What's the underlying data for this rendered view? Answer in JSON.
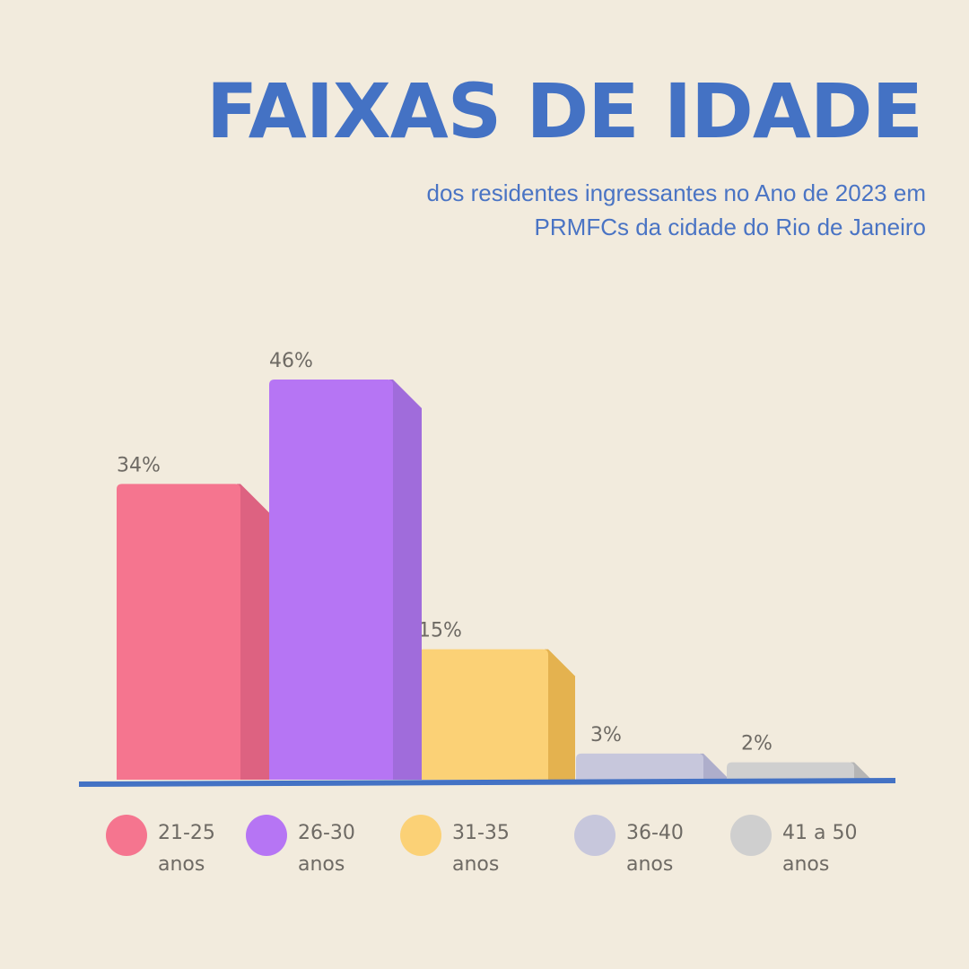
{
  "title": "FAIXAS DE IDADE",
  "subtitle_line1": "dos residentes ingressantes no Ano de 2023 em",
  "subtitle_line2": "PRMFCs da cidade do Rio de Janeiro",
  "chart_data": {
    "type": "bar",
    "categories": [
      "21-25 anos",
      "26-30 anos",
      "31-35 anos",
      "36-40 anos",
      "41 a 50 anos"
    ],
    "values": [
      34,
      46,
      15,
      3,
      2
    ],
    "labels": [
      "34%",
      "46%",
      "15%",
      "3%",
      "2%"
    ],
    "ylim": [
      0,
      46
    ],
    "colors": [
      "#f5758f",
      "#b675f4",
      "#fbd176",
      "#c7c7dc",
      "#cfcfcf"
    ],
    "side_colors": [
      "#dd6281",
      "#a06cdb",
      "#e4b24f",
      "#aeaecb",
      "#b5b5b5"
    ],
    "axis_color": "#4472c4"
  },
  "legend": [
    {
      "line1": "21-25",
      "line2": "anos",
      "color": "#f5758f"
    },
    {
      "line1": "26-30",
      "line2": "anos",
      "color": "#b675f4"
    },
    {
      "line1": "31-35",
      "line2": "anos",
      "color": "#fbd176"
    },
    {
      "line1": "36-40",
      "line2": "anos",
      "color": "#c7c7dc"
    },
    {
      "line1": "41 a 50",
      "line2": "anos",
      "color": "#cfcfcf"
    }
  ]
}
